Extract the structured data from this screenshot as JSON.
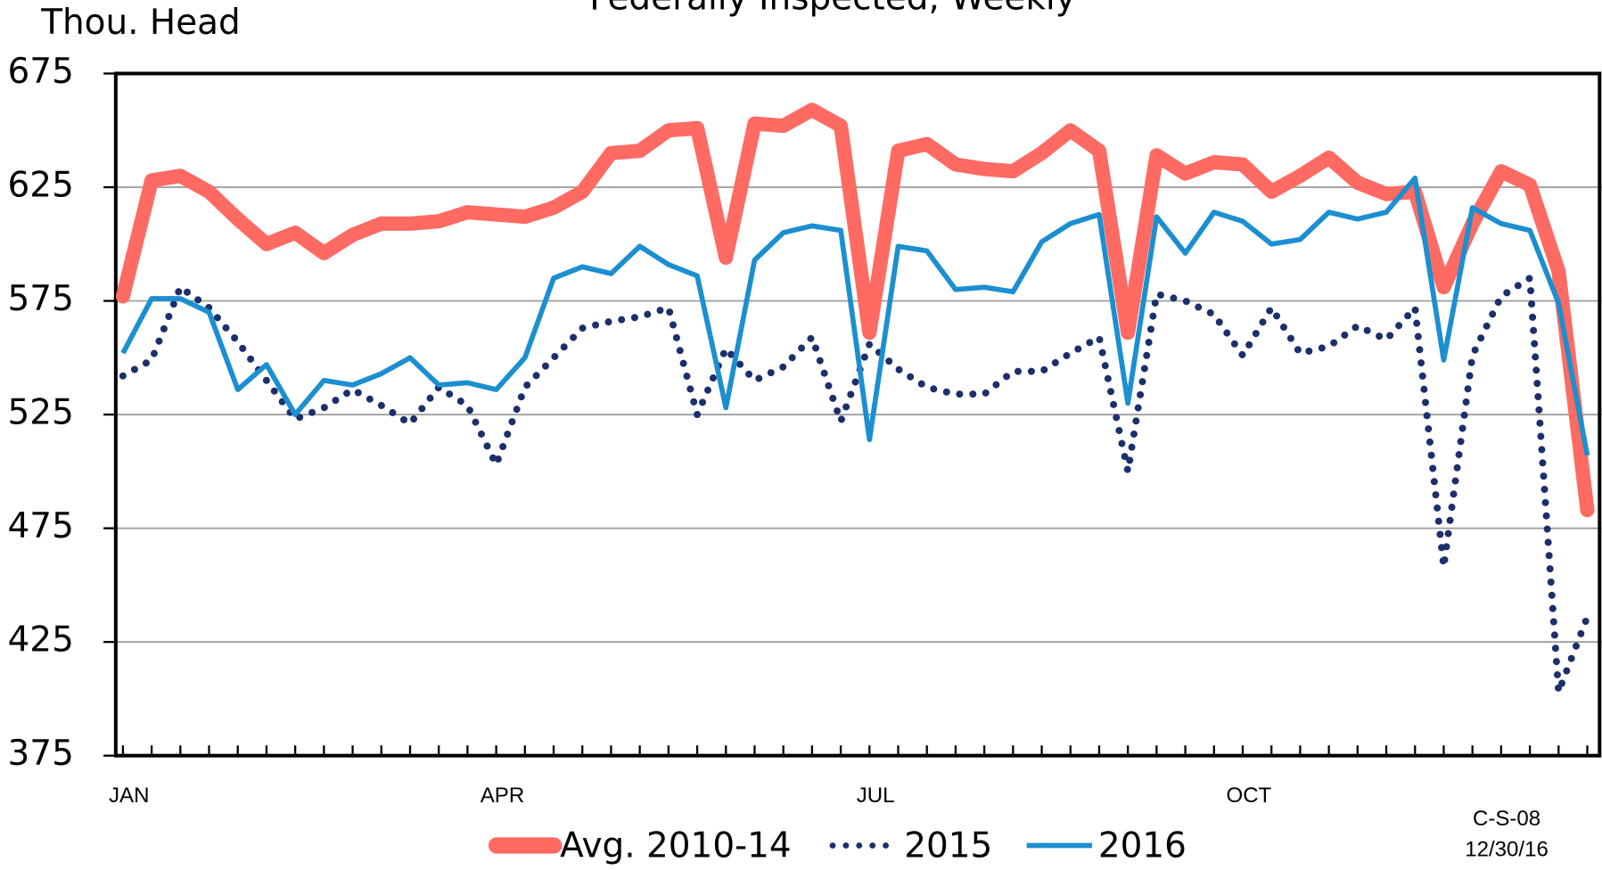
{
  "chart_data": {
    "type": "line",
    "title": "Federally Inspected, Weekly",
    "y_label": "Thou. Head",
    "notes": [
      "C-S-08",
      "12/30/16"
    ],
    "x": [
      1,
      2,
      3,
      4,
      5,
      6,
      7,
      8,
      9,
      10,
      11,
      12,
      13,
      14,
      15,
      16,
      17,
      18,
      19,
      20,
      21,
      22,
      23,
      24,
      25,
      26,
      27,
      28,
      29,
      30,
      31,
      32,
      33,
      34,
      35,
      36,
      37,
      38,
      39,
      40,
      41,
      42,
      43,
      44,
      45,
      46,
      47,
      48,
      49,
      50,
      51,
      52
    ],
    "xlim": [
      0.75,
      52.5
    ],
    "xticks": [
      {
        "value": 1,
        "label": "JAN"
      },
      {
        "value": 14,
        "label": "APR"
      },
      {
        "value": 27,
        "label": "JUL"
      },
      {
        "value": 40,
        "label": "OCT"
      }
    ],
    "ylim": [
      375,
      675
    ],
    "yticks": [
      375,
      425,
      475,
      525,
      575,
      625,
      675
    ],
    "grid": true,
    "legend": "bottom",
    "series": [
      {
        "name": "Avg. 2010-14",
        "color": "#ff6a63",
        "style": "thick",
        "values": [
          577,
          628,
          630,
          623,
          611,
          600,
          605,
          596,
          604,
          609,
          609,
          610,
          614,
          613,
          612,
          616,
          623,
          640,
          641,
          650,
          651,
          594,
          653,
          652,
          659,
          652,
          561,
          641,
          644,
          635,
          633,
          632,
          640,
          650,
          641,
          561,
          639,
          631,
          636,
          635,
          623,
          630,
          638,
          627,
          622,
          623,
          581,
          609,
          632,
          626,
          588,
          483
        ]
      },
      {
        "name": "2015",
        "color": "#1b2f6b",
        "style": "dotted",
        "values": [
          542,
          549,
          581,
          572,
          557,
          540,
          523,
          528,
          536,
          529,
          521,
          537,
          529,
          503,
          537,
          550,
          563,
          566,
          568,
          572,
          525,
          554,
          540,
          546,
          559,
          522,
          556,
          545,
          537,
          534,
          534,
          544,
          544,
          552,
          559,
          500,
          578,
          575,
          569,
          551,
          572,
          552,
          555,
          564,
          558,
          572,
          458,
          551,
          577,
          585,
          403,
          436
        ]
      },
      {
        "name": "2016",
        "color": "#1b8fd0",
        "style": "solid",
        "values": [
          552,
          576,
          576,
          570,
          536,
          547,
          525,
          540,
          538,
          543,
          550,
          538,
          539,
          536,
          550,
          585,
          590,
          587,
          599,
          591,
          586,
          528,
          593,
          605,
          608,
          606,
          514,
          599,
          597,
          580,
          581,
          579,
          601,
          609,
          613,
          530,
          612,
          596,
          614,
          610,
          600,
          602,
          614,
          611,
          614,
          629,
          549,
          616,
          609,
          606,
          574,
          507
        ]
      }
    ]
  }
}
